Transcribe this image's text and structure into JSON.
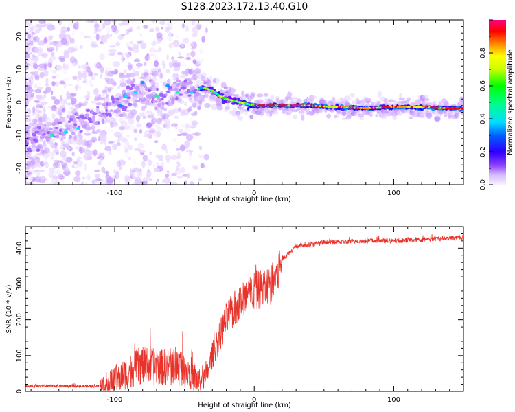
{
  "title": "S128.2023.172.13.40.G10",
  "colors": {
    "snr_line": "#e8332a",
    "colormap": [
      "#f7f3ff",
      "#e6d2ff",
      "#c79aff",
      "#9b5cff",
      "#6b00ff",
      "#3a10ff",
      "#0000ff",
      "#0090ff",
      "#00e5ff",
      "#00ff90",
      "#00ff00",
      "#b0ff00",
      "#ffff00",
      "#ff9000",
      "#ff0000",
      "#ff0080"
    ]
  },
  "chart_data": [
    {
      "type": "heatmap",
      "xlabel": "Height of straight line (km)",
      "ylabel": "Frequency (Hz)",
      "xlim": [
        -164,
        150
      ],
      "ylim": [
        -25,
        25
      ],
      "x_ticks": [
        "-100",
        "0",
        "100"
      ],
      "y_ticks": [
        "-20",
        "-10",
        "0",
        "10",
        "20"
      ],
      "colorbar": {
        "label": "Normalized spectral amplitude",
        "range": [
          0,
          1
        ],
        "ticks": [
          "0.0",
          "0.2",
          "0.4",
          "0.6",
          "0.8"
        ]
      },
      "ridge": {
        "x": [
          -160,
          -150,
          -140,
          -130,
          -120,
          -110,
          -100,
          -90,
          -80,
          -70,
          -60,
          -50,
          -40,
          -36,
          -30,
          -25,
          -20,
          -15,
          -10,
          -5,
          0,
          20,
          40,
          60,
          80,
          100,
          120,
          150
        ],
        "y": [
          -11,
          -10,
          -9,
          -7,
          -5,
          -3,
          -1,
          2,
          4,
          1,
          3,
          5,
          4,
          4.5,
          3.5,
          2,
          1,
          0.5,
          0,
          -0.5,
          -1,
          -1,
          -1,
          -1.5,
          -1.8,
          -1.5,
          -1.5,
          -2
        ]
      }
    },
    {
      "type": "line",
      "xlabel": "Height of straight line (km)",
      "ylabel": "SNR (10 * v/v)",
      "xlim": [
        -164,
        150
      ],
      "ylim": [
        0,
        460
      ],
      "x_ticks": [
        "-100",
        "0",
        "100"
      ],
      "y_ticks": [
        "0",
        "100",
        "200",
        "300",
        "400"
      ],
      "series": [
        {
          "trend_x": [
            -164,
            -110,
            -100,
            -90,
            -80,
            -70,
            -60,
            -50,
            -40,
            -35,
            -30,
            -20,
            -10,
            0,
            10,
            15,
            20,
            30,
            50,
            80,
            100,
            150
          ],
          "trend_y": [
            15,
            15,
            30,
            55,
            75,
            65,
            70,
            70,
            30,
            35,
            100,
            200,
            250,
            280,
            290,
            310,
            370,
            405,
            415,
            420,
            420,
            430
          ]
        }
      ]
    }
  ]
}
